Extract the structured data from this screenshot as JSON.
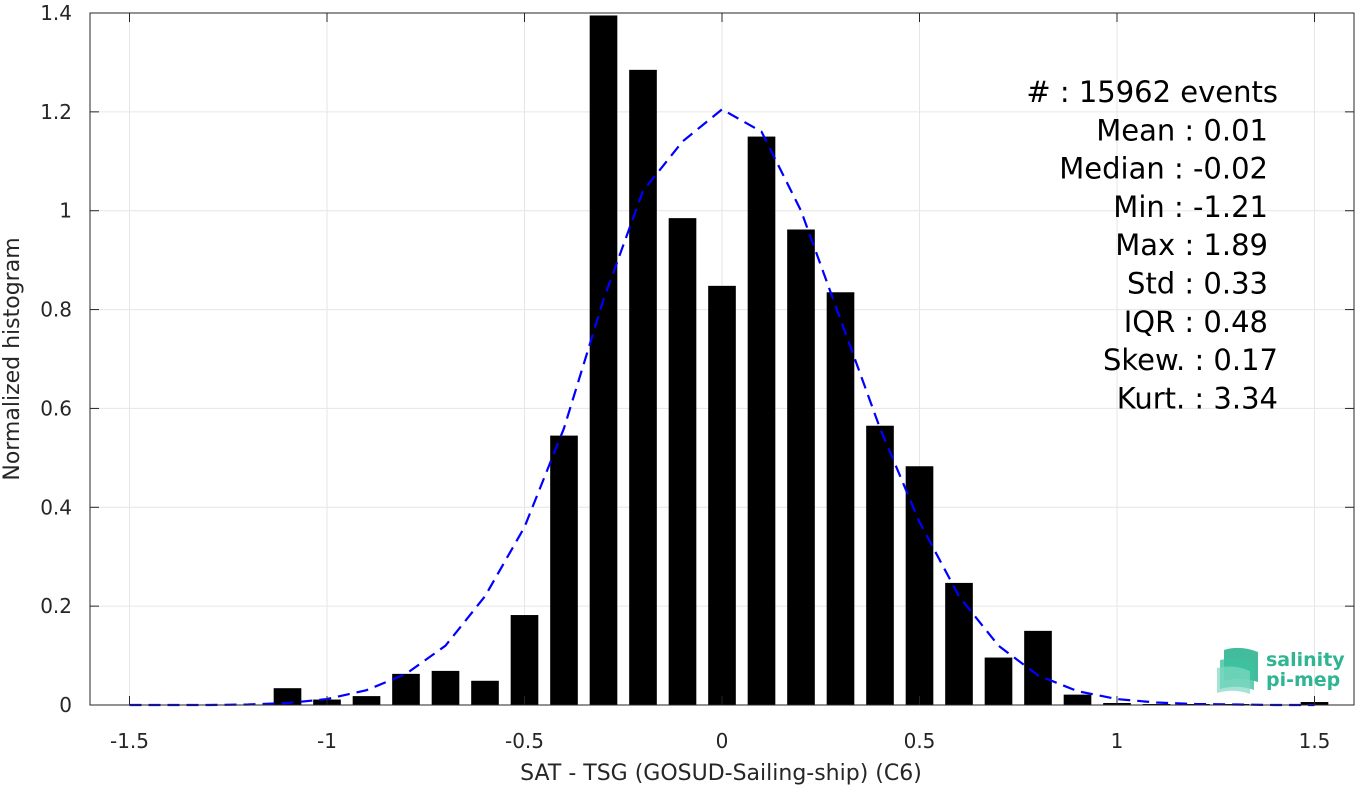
{
  "chart_data": {
    "type": "bar",
    "xlabel": "SAT - TSG (GOSUD-Sailing-ship) (C6)",
    "ylabel": "Normalized histogram",
    "xlim": [
      -1.6,
      1.6
    ],
    "ylim": [
      0,
      1.4
    ],
    "grid": true,
    "x_ticks": [
      -1.5,
      -1,
      -0.5,
      0,
      0.5,
      1,
      1.5
    ],
    "x_tick_labels": [
      "-1.5",
      "-1",
      "-0.5",
      "0",
      "0.5",
      "1",
      "1.5"
    ],
    "y_ticks": [
      0,
      0.2,
      0.4,
      0.6,
      0.8,
      1,
      1.2,
      1.4
    ],
    "y_tick_labels": [
      "0",
      "0.2",
      "0.4",
      "0.6",
      "0.8",
      "1",
      "1.2",
      "1.4"
    ],
    "bar_width": 0.07,
    "bar_color": "#000000",
    "bars": [
      {
        "x": -1.5,
        "value": 0.0
      },
      {
        "x": -1.4,
        "value": 0.0
      },
      {
        "x": -1.3,
        "value": 0.0
      },
      {
        "x": -1.2,
        "value": 0.0
      },
      {
        "x": -1.1,
        "value": 0.034
      },
      {
        "x": -1.0,
        "value": 0.011
      },
      {
        "x": -0.9,
        "value": 0.018
      },
      {
        "x": -0.8,
        "value": 0.063
      },
      {
        "x": -0.7,
        "value": 0.069
      },
      {
        "x": -0.6,
        "value": 0.049
      },
      {
        "x": -0.5,
        "value": 0.182
      },
      {
        "x": -0.4,
        "value": 0.545
      },
      {
        "x": -0.3,
        "value": 1.395
      },
      {
        "x": -0.2,
        "value": 1.285
      },
      {
        "x": -0.1,
        "value": 0.985
      },
      {
        "x": 0.0,
        "value": 0.848
      },
      {
        "x": 0.1,
        "value": 1.15
      },
      {
        "x": 0.2,
        "value": 0.962
      },
      {
        "x": 0.3,
        "value": 0.835
      },
      {
        "x": 0.4,
        "value": 0.565
      },
      {
        "x": 0.5,
        "value": 0.483
      },
      {
        "x": 0.6,
        "value": 0.247
      },
      {
        "x": 0.7,
        "value": 0.096
      },
      {
        "x": 0.8,
        "value": 0.15
      },
      {
        "x": 0.9,
        "value": 0.021
      },
      {
        "x": 1.0,
        "value": 0.004
      },
      {
        "x": 1.1,
        "value": 0.002
      },
      {
        "x": 1.2,
        "value": 0.002
      },
      {
        "x": 1.3,
        "value": 0.002
      },
      {
        "x": 1.4,
        "value": 0.0
      },
      {
        "x": 1.5,
        "value": 0.006
      }
    ],
    "fit_curve": {
      "style": "dashed",
      "color": "#0000ff",
      "x": [
        -1.5,
        -1.4,
        -1.3,
        -1.2,
        -1.1,
        -1.0,
        -0.9,
        -0.8,
        -0.7,
        -0.6,
        -0.5,
        -0.4,
        -0.3,
        -0.2,
        -0.1,
        0.0,
        0.1,
        0.2,
        0.3,
        0.4,
        0.5,
        0.6,
        0.7,
        0.8,
        0.9,
        1.0,
        1.1,
        1.2,
        1.3,
        1.4,
        1.5
      ],
      "y": [
        0.0,
        0.0,
        0.0,
        0.001,
        0.004,
        0.012,
        0.03,
        0.063,
        0.12,
        0.22,
        0.36,
        0.56,
        0.82,
        1.04,
        1.14,
        1.205,
        1.16,
        1.0,
        0.78,
        0.56,
        0.37,
        0.22,
        0.12,
        0.06,
        0.028,
        0.012,
        0.005,
        0.002,
        0.001,
        0.0,
        0.0
      ]
    },
    "annotations": [
      "#  : 15962 events",
      "Mean : 0.01",
      "Median : -0.02",
      "Min : -1.21",
      "Max : 1.89",
      "Std : 0.33",
      "IQR : 0.48",
      "Skew. : 0.17",
      "Kurt. : 3.34"
    ]
  },
  "logo": {
    "line1": "salinity",
    "line2": "pi-mep"
  }
}
